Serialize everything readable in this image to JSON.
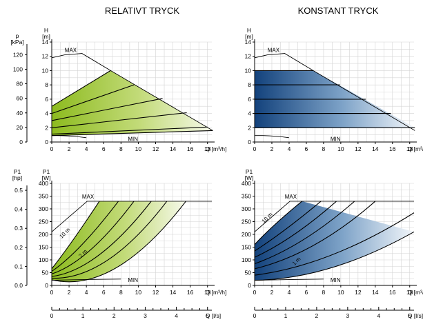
{
  "titles": {
    "left": "RELATIVT TRYCK",
    "right": "KONSTANT TRYCK"
  },
  "colors": {
    "relative_fill": "#8dbb1f",
    "constant_fill": "#13427c",
    "grid": "#d4d4d4",
    "curve": "#000000"
  },
  "chart_data": [
    {
      "panel": "head-relative",
      "type": "line",
      "title": "RELATIVT TRYCK",
      "xlabel": "Q [m³/h]",
      "ylabel": "H [m]",
      "secondary_ylabel": "p [kPa]",
      "xlim": [
        0,
        18.5
      ],
      "ylim": [
        0,
        14
      ],
      "x_ticks": [
        0,
        2,
        4,
        6,
        8,
        10,
        12,
        14,
        16,
        18
      ],
      "y_ticks": [
        0,
        2,
        4,
        6,
        8,
        10,
        12,
        14
      ],
      "secondary_ticks": [
        0,
        20,
        40,
        60,
        80,
        100,
        120
      ],
      "fill": "green",
      "labels": [
        "MAX",
        "MIN"
      ],
      "series": [
        {
          "name": "MAX",
          "x": [
            0,
            1.5,
            3.5,
            6.8,
            18.6
          ],
          "y": [
            11.8,
            12.2,
            12.4,
            10,
            1.6
          ]
        },
        {
          "name": "MIN",
          "x": [
            0,
            2,
            4,
            6,
            7.5
          ],
          "y": [
            0.9,
            0.85,
            0.6,
            0.25,
            0
          ]
        },
        {
          "name": "",
          "x": [
            0,
            6.8
          ],
          "y": [
            5,
            10
          ]
        },
        {
          "name": "",
          "x": [
            0,
            9.5
          ],
          "y": [
            4,
            8
          ]
        },
        {
          "name": "",
          "x": [
            0,
            12.8
          ],
          "y": [
            3,
            6.1
          ]
        },
        {
          "name": "",
          "x": [
            0,
            15.6
          ],
          "y": [
            2,
            4.1
          ]
        },
        {
          "name": "",
          "x": [
            0,
            18
          ],
          "y": [
            1.1,
            2.1
          ]
        },
        {
          "name": "",
          "x": [
            0,
            18.6
          ],
          "y": [
            0.9,
            1.6
          ]
        }
      ]
    },
    {
      "panel": "head-constant",
      "type": "line",
      "title": "KONSTANT TRYCK",
      "xlabel": "Q [m³/h]",
      "ylabel": "H [m]",
      "xlim": [
        0,
        18.5
      ],
      "ylim": [
        0,
        14
      ],
      "x_ticks": [
        0,
        2,
        4,
        6,
        8,
        10,
        12,
        14,
        16,
        18
      ],
      "y_ticks": [
        0,
        2,
        4,
        6,
        8,
        10,
        12,
        14
      ],
      "fill": "blue",
      "labels": [
        "MAX",
        "MIN"
      ],
      "series": [
        {
          "name": "MAX",
          "x": [
            0,
            1.5,
            3.5,
            6.8,
            18.6
          ],
          "y": [
            11.8,
            12.2,
            12.4,
            10,
            1.6
          ]
        },
        {
          "name": "MIN",
          "x": [
            0,
            2,
            4,
            6,
            7.5
          ],
          "y": [
            0.9,
            0.85,
            0.6,
            0.25,
            0
          ]
        },
        {
          "name": "",
          "x": [
            0,
            6.8
          ],
          "y": [
            10,
            10
          ]
        },
        {
          "name": "",
          "x": [
            0,
            9.9
          ],
          "y": [
            8,
            8
          ]
        },
        {
          "name": "",
          "x": [
            0,
            12.9
          ],
          "y": [
            6,
            6
          ]
        },
        {
          "name": "",
          "x": [
            0,
            15.8
          ],
          "y": [
            4,
            4
          ]
        },
        {
          "name": "",
          "x": [
            0,
            18.6
          ],
          "y": [
            2,
            2
          ]
        }
      ]
    },
    {
      "panel": "power-relative",
      "type": "line",
      "xlabel": "Q [m³/h]",
      "ylabel": "P1 [W]",
      "secondary_ylabel": "P1 [hp]",
      "xlim": [
        0,
        18.5
      ],
      "ylim": [
        0,
        400
      ],
      "x_ticks": [
        0,
        2,
        4,
        6,
        8,
        10,
        12,
        14,
        16,
        18
      ],
      "y_ticks": [
        0,
        50,
        100,
        150,
        200,
        250,
        300,
        350,
        400
      ],
      "secondary_ticks": [
        0.0,
        0.1,
        0.2,
        0.3,
        0.4,
        0.5
      ],
      "flow_ls_ticks": [
        0,
        1,
        2,
        3,
        4,
        5
      ],
      "flow_ls_label": "Q [l/s]",
      "fill": "green",
      "labels": [
        "MAX",
        "MIN",
        "10 m",
        "2 m"
      ],
      "series": [
        {
          "name": "MAX",
          "x": [
            0,
            4.1,
            18.5
          ],
          "y": [
            210,
            330,
            330
          ]
        },
        {
          "name": "MIN",
          "x": [
            0,
            4,
            8
          ],
          "y": [
            20,
            23,
            25
          ]
        },
        {
          "name": "10 m",
          "x": [
            0,
            2.5,
            5.5
          ],
          "y": [
            65,
            180,
            330
          ]
        },
        {
          "name": "",
          "x": [
            0,
            3.5,
            7.7
          ],
          "y": [
            55,
            160,
            330
          ]
        },
        {
          "name": "",
          "x": [
            0,
            4.5,
            9.5
          ],
          "y": [
            45,
            140,
            330
          ]
        },
        {
          "name": "",
          "x": [
            0,
            5.5,
            11.5
          ],
          "y": [
            35,
            120,
            330
          ]
        },
        {
          "name": "2 m",
          "x": [
            0,
            6.5,
            13.3
          ],
          "y": [
            28,
            100,
            330
          ]
        },
        {
          "name": "",
          "x": [
            0,
            7.5,
            15.5
          ],
          "y": [
            22,
            70,
            330
          ]
        }
      ]
    },
    {
      "panel": "power-constant",
      "type": "line",
      "xlabel": "Q [m³/h]",
      "ylabel": "P1 [W]",
      "xlim": [
        0,
        18.5
      ],
      "ylim": [
        0,
        400
      ],
      "x_ticks": [
        0,
        2,
        4,
        6,
        8,
        10,
        12,
        14,
        16,
        18
      ],
      "y_ticks": [
        0,
        50,
        100,
        150,
        200,
        250,
        300,
        350,
        400
      ],
      "flow_ls_ticks": [
        0,
        1,
        2,
        3,
        4,
        5
      ],
      "flow_ls_label": "Q [l/s]",
      "fill": "blue",
      "labels": [
        "MAX",
        "MIN",
        "10 m",
        "1 m"
      ],
      "series": [
        {
          "name": "MAX",
          "x": [
            0,
            4.1,
            18.5
          ],
          "y": [
            210,
            330,
            330
          ]
        },
        {
          "name": "MIN",
          "x": [
            0,
            4,
            8
          ],
          "y": [
            20,
            23,
            25
          ]
        },
        {
          "name": "10 m",
          "x": [
            0,
            2.4,
            5.5
          ],
          "y": [
            160,
            240,
            330
          ]
        },
        {
          "name": "",
          "x": [
            0,
            3.6,
            7.7
          ],
          "y": [
            135,
            220,
            330
          ]
        },
        {
          "name": "",
          "x": [
            0,
            4.6,
            9.5
          ],
          "y": [
            110,
            200,
            330
          ]
        },
        {
          "name": "",
          "x": [
            0,
            5.7,
            11.6
          ],
          "y": [
            85,
            180,
            330
          ]
        },
        {
          "name": "",
          "x": [
            0,
            7,
            14
          ],
          "y": [
            65,
            160,
            330
          ]
        },
        {
          "name": "",
          "x": [
            0,
            9,
            18.5
          ],
          "y": [
            40,
            120,
            285
          ]
        },
        {
          "name": "1 m",
          "x": [
            0,
            9,
            18.5
          ],
          "y": [
            20,
            70,
            210
          ]
        }
      ]
    }
  ]
}
